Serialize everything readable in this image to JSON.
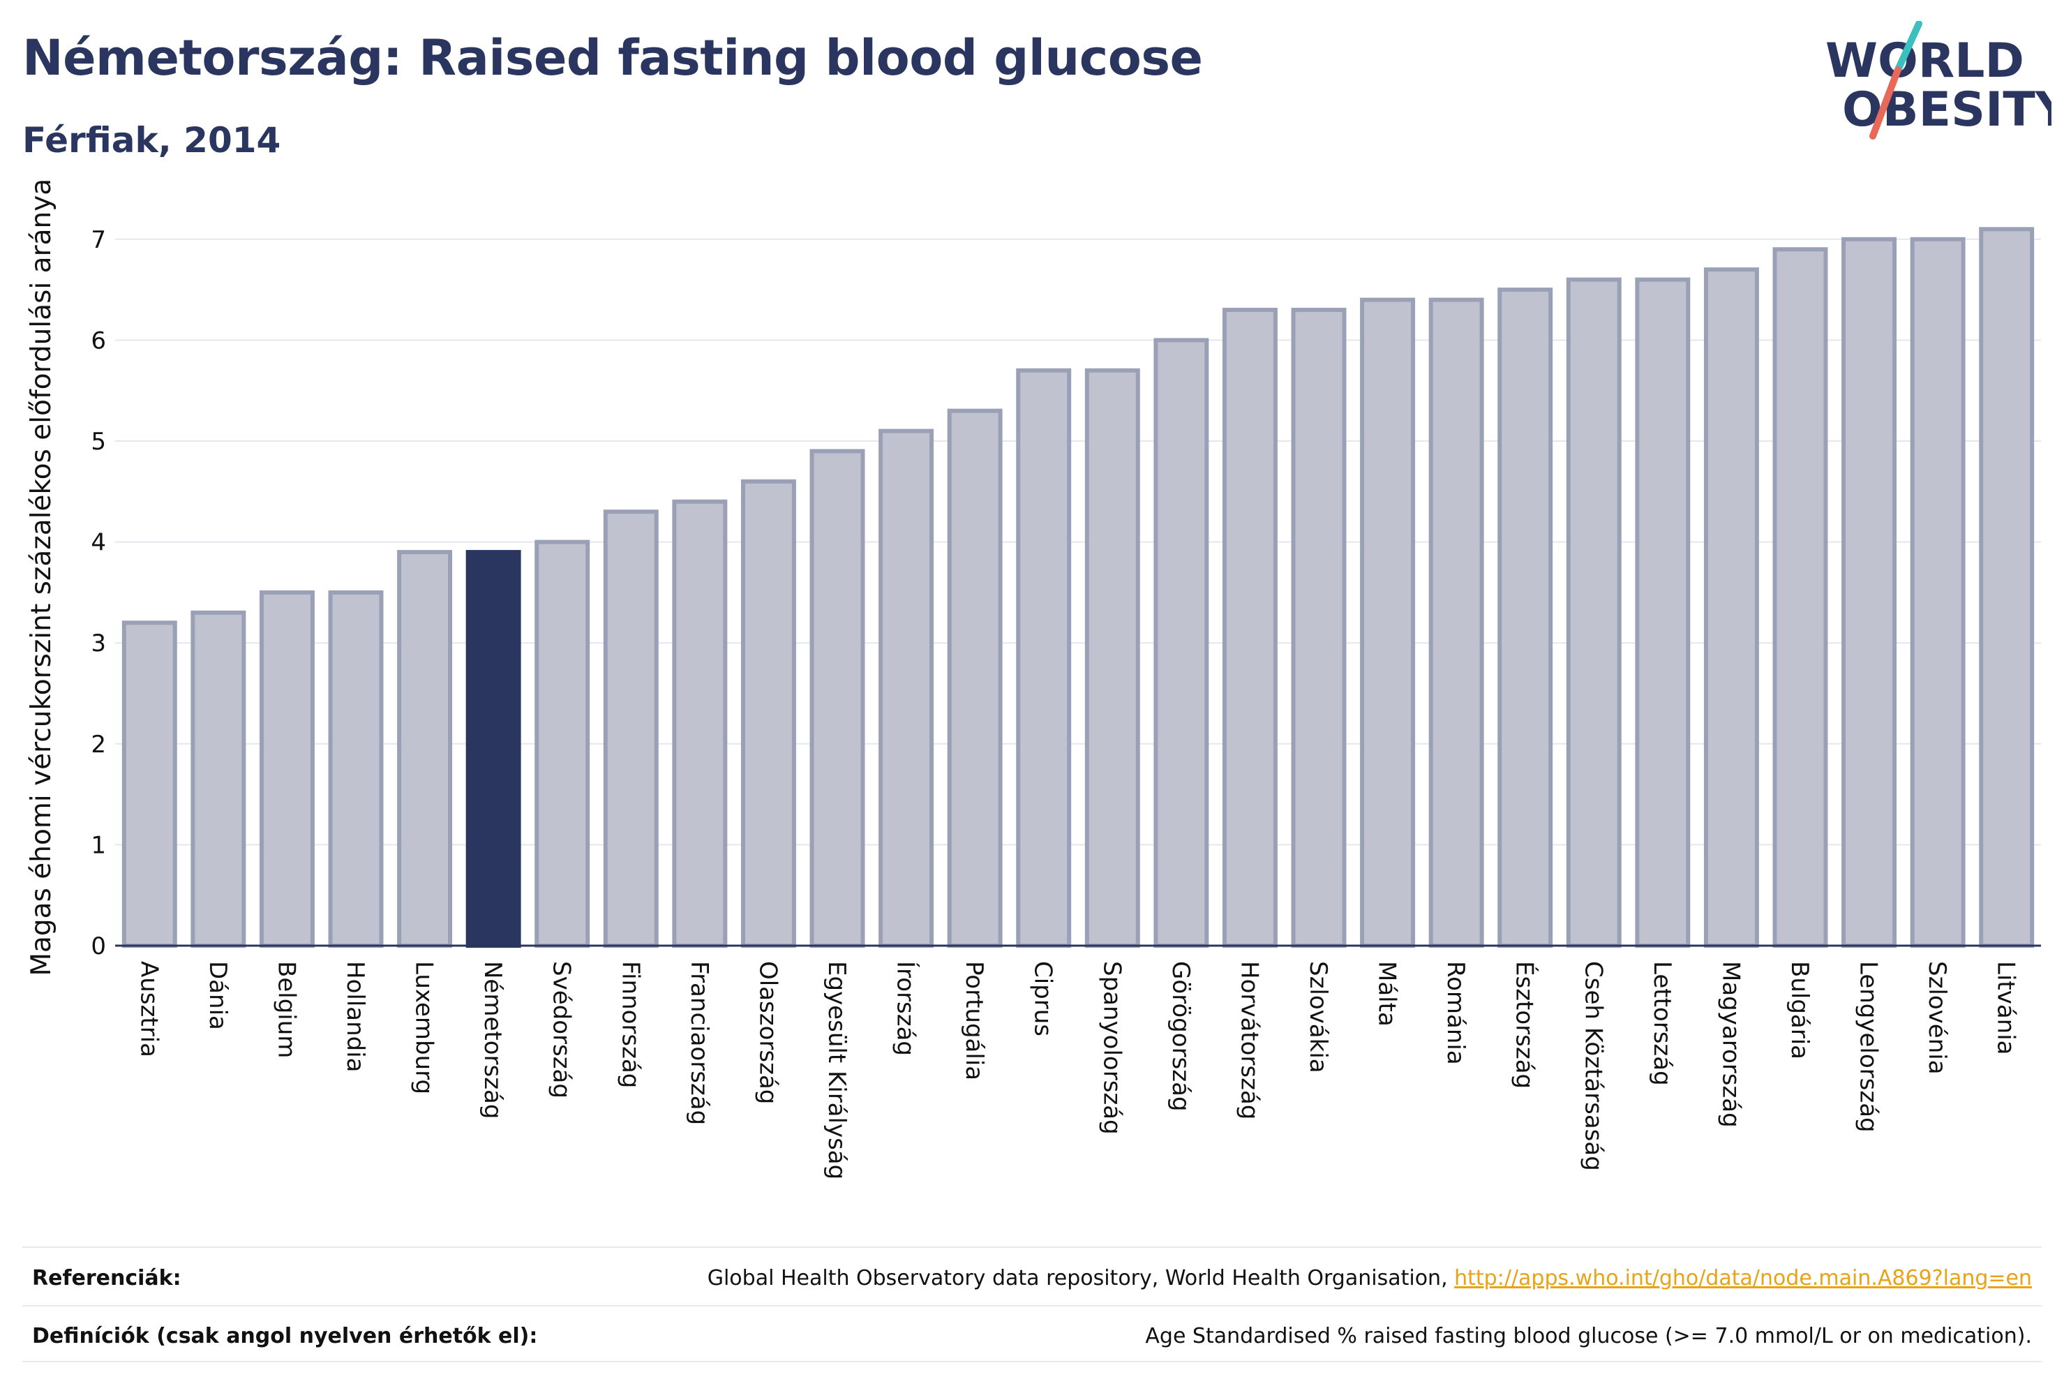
{
  "header": {
    "title": "Németország: Raised fasting blood glucose",
    "subtitle": "Férfiak, 2014"
  },
  "logo": {
    "line1": "WORLD",
    "line2": "OBESITY"
  },
  "chart_data": {
    "type": "bar",
    "title": "Németország: Raised fasting blood glucose",
    "subtitle": "Férfiak, 2014",
    "xlabel": "",
    "ylabel": "Magas éhomi vércukorszint százalékos előfordulási aránya",
    "ylim": [
      0,
      7.3
    ],
    "yticks": [
      0,
      1,
      2,
      3,
      4,
      5,
      6,
      7
    ],
    "grid": true,
    "highlight": "Németország",
    "colors": {
      "bar": "#c0c3cf",
      "bar_border": "#9aa0b6",
      "highlight": "#2b3660",
      "axis": "#2b3660",
      "grid": "#e6e7ee"
    },
    "categories": [
      "Ausztria",
      "Dánia",
      "Belgium",
      "Hollandia",
      "Luxemburg",
      "Németország",
      "Svédország",
      "Finnország",
      "Franciaország",
      "Olaszország",
      "Egyesült Királyság",
      "Írország",
      "Portugália",
      "Ciprus",
      "Spanyolország",
      "Görögország",
      "Horvátország",
      "Szlovákia",
      "Málta",
      "Románia",
      "Észtország",
      "Cseh Köztársaság",
      "Lettország",
      "Magyarország",
      "Bulgária",
      "Lengyelország",
      "Szlovénia",
      "Litvánia"
    ],
    "values": [
      3.2,
      3.3,
      3.5,
      3.5,
      3.9,
      3.9,
      4.0,
      4.3,
      4.4,
      4.6,
      4.9,
      5.1,
      5.3,
      5.7,
      5.7,
      6.0,
      6.3,
      6.3,
      6.4,
      6.4,
      6.5,
      6.6,
      6.6,
      6.7,
      6.9,
      7.0,
      7.0,
      7.1
    ]
  },
  "footer": {
    "references_label": "Referenciák:",
    "references_text": "Global Health Observatory data repository, World Health Organisation, ",
    "references_url": "http://apps.who.int/gho/data/node.main.A869?lang=en",
    "definitions_label": "Definíciók (csak angol nyelven érhetők el):",
    "definitions_text": "Age Standardised % raised fasting blood glucose (>= 7.0 mmol/L or on medication)."
  }
}
